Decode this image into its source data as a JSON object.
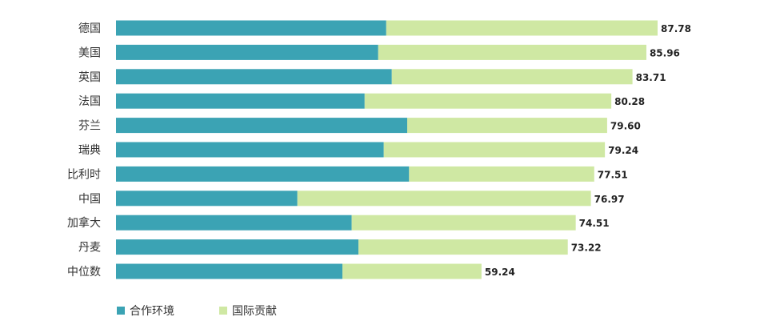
{
  "chart_data": {
    "type": "bar",
    "orientation": "horizontal",
    "stacked": true,
    "categories": [
      "德国",
      "美国",
      "英国",
      "法国",
      "芬兰",
      "瑞典",
      "比利时",
      "中国",
      "加拿大",
      "丹麦",
      "中位数"
    ],
    "series": [
      {
        "name": "合作环境",
        "color": "#3ba3b4",
        "values": [
          43.8,
          42.5,
          44.7,
          40.3,
          47.2,
          43.4,
          47.5,
          29.4,
          38.2,
          39.3,
          36.7
        ]
      },
      {
        "name": "国际贡献",
        "color": "#cfe8a3",
        "values": [
          43.98,
          43.46,
          39.01,
          39.98,
          32.4,
          35.84,
          30.01,
          47.57,
          36.31,
          33.92,
          22.54
        ]
      }
    ],
    "totals": [
      "87.78",
      "85.96",
      "83.71",
      "80.28",
      "79.60",
      "79.24",
      "77.51",
      "76.97",
      "74.51",
      "73.22",
      "59.24"
    ],
    "xlim": [
      0,
      87.78
    ],
    "grid": false,
    "legend": "bottom-left"
  }
}
